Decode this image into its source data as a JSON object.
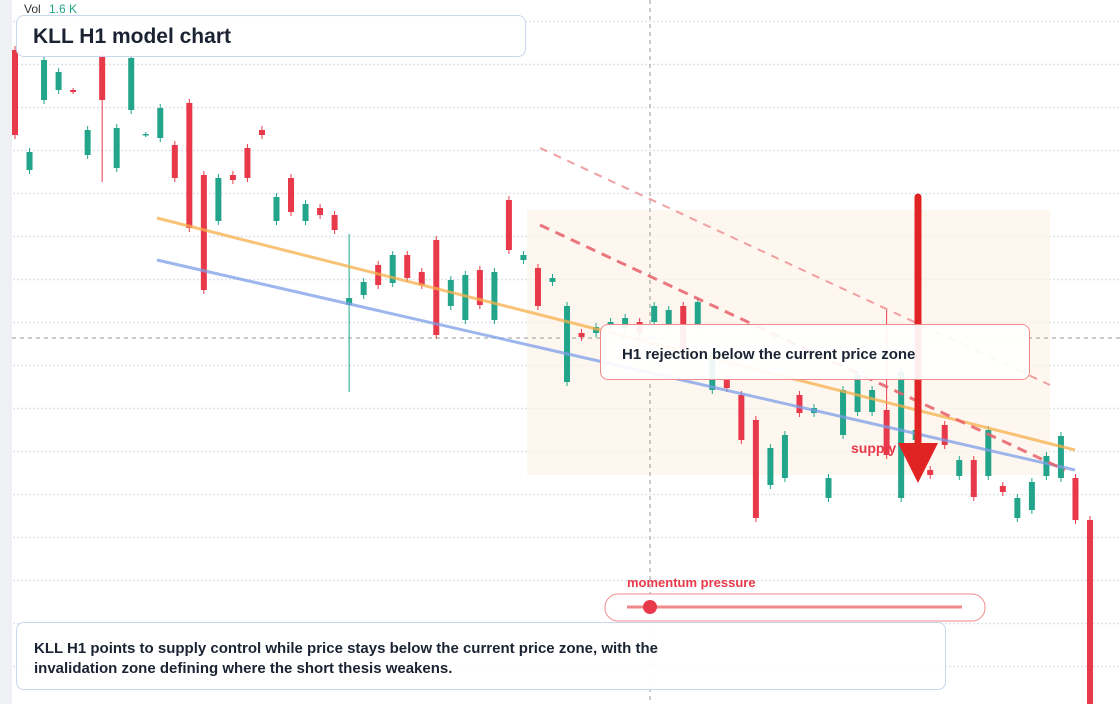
{
  "chart_data": {
    "type": "candlestick",
    "title": "KLL H1 model chart",
    "volume_label": "Vol",
    "volume_value": "1.6 K",
    "up_color": "#22a58a",
    "down_color": "#e8394a",
    "ylim": [
      29.6,
      100
    ],
    "open": [
      95.0,
      83.0,
      90.0,
      91.0,
      91.0,
      84.5,
      94.5,
      83.2,
      89.0,
      86.5,
      86.2,
      85.5,
      89.7,
      82.5,
      77.9,
      82.5,
      85.2,
      87.0,
      77.9,
      82.2,
      77.9,
      79.2,
      78.5,
      69.5,
      70.5,
      73.5,
      71.7,
      74.5,
      72.8,
      76.0,
      69.4,
      68.0,
      73.0,
      68.0,
      80.0,
      74.0,
      73.2,
      71.8,
      61.8,
      66.7,
      66.7,
      67.4,
      67.2,
      67.8,
      67.8,
      67.5,
      69.4,
      67.5,
      61.0,
      62.0,
      60.5,
      58.0,
      51.5,
      52.2,
      60.5,
      58.7,
      50.2,
      56.5,
      58.8,
      58.8,
      59.0,
      50.2,
      56.0,
      53.0,
      57.5,
      52.4,
      54.0,
      52.4,
      51.4,
      48.2,
      49.0,
      52.4,
      52.2,
      52.2,
      48.0
    ],
    "high": [
      95.4,
      85.2,
      94.4,
      93.2,
      91.2,
      87.4,
      94.9,
      87.6,
      94.6,
      86.8,
      89.6,
      85.9,
      90.1,
      82.9,
      82.6,
      82.9,
      85.6,
      87.4,
      80.7,
      82.6,
      80.0,
      79.6,
      78.9,
      76.6,
      72.2,
      73.9,
      74.9,
      74.9,
      73.2,
      76.4,
      72.4,
      72.9,
      73.4,
      73.2,
      80.4,
      74.9,
      73.6,
      72.6,
      69.8,
      67.1,
      67.7,
      68.2,
      68.6,
      68.2,
      69.8,
      69.4,
      69.8,
      70.2,
      64.9,
      62.4,
      60.9,
      58.4,
      55.6,
      56.9,
      60.9,
      59.6,
      52.6,
      61.4,
      62.9,
      61.4,
      69.2,
      63.2,
      57.4,
      53.4,
      57.9,
      54.4,
      54.4,
      57.4,
      51.8,
      50.6,
      52.2,
      54.8,
      56.8,
      52.6,
      48.4
    ],
    "low": [
      86.1,
      82.6,
      89.6,
      90.6,
      90.6,
      84.1,
      81.8,
      82.8,
      88.6,
      86.3,
      85.8,
      81.8,
      76.8,
      70.6,
      77.5,
      81.6,
      81.8,
      86.1,
      77.5,
      78.4,
      77.5,
      78.1,
      76.6,
      60.8,
      70.1,
      71.1,
      71.3,
      71.8,
      71.1,
      66.1,
      69.0,
      67.6,
      69.1,
      67.6,
      74.6,
      73.6,
      69.0,
      71.4,
      61.4,
      65.9,
      66.3,
      67.0,
      66.8,
      66.3,
      67.4,
      67.1,
      64.6,
      67.1,
      60.6,
      60.8,
      55.6,
      47.8,
      51.1,
      51.8,
      58.3,
      58.3,
      49.8,
      56.1,
      58.4,
      58.4,
      54.1,
      49.8,
      55.6,
      52.1,
      55.1,
      52.0,
      49.9,
      52.0,
      50.4,
      47.8,
      48.6,
      52.0,
      51.8,
      47.6,
      29.6
    ],
    "close": [
      86.5,
      84.8,
      94.0,
      92.8,
      90.8,
      87.0,
      90.0,
      87.2,
      94.2,
      86.6,
      89.2,
      82.2,
      77.2,
      71.0,
      82.2,
      82.0,
      82.2,
      86.5,
      80.3,
      78.8,
      79.6,
      78.5,
      77.0,
      70.2,
      71.8,
      71.5,
      74.5,
      72.2,
      71.5,
      66.5,
      72.0,
      72.5,
      69.5,
      72.8,
      75.0,
      74.5,
      69.4,
      72.2,
      69.4,
      66.3,
      67.3,
      67.8,
      68.2,
      66.7,
      69.4,
      69.0,
      65.0,
      69.8,
      64.5,
      61.2,
      56.0,
      48.2,
      55.2,
      56.5,
      58.7,
      59.2,
      52.2,
      61.0,
      62.5,
      61.0,
      54.5,
      62.8,
      57.0,
      52.5,
      55.5,
      54.0,
      50.3,
      57.0,
      50.8,
      50.2,
      51.8,
      54.4,
      56.4,
      48.0,
      29.6
    ]
  },
  "annotations": {
    "callout": "H1 rejection below the current price zone",
    "zone_label": "supply",
    "momentum_label": "momentum pressure",
    "note": "KLL H1 points to supply control while price stays below the current price zone, with the invalidation zone defining where the short thesis weakens."
  }
}
